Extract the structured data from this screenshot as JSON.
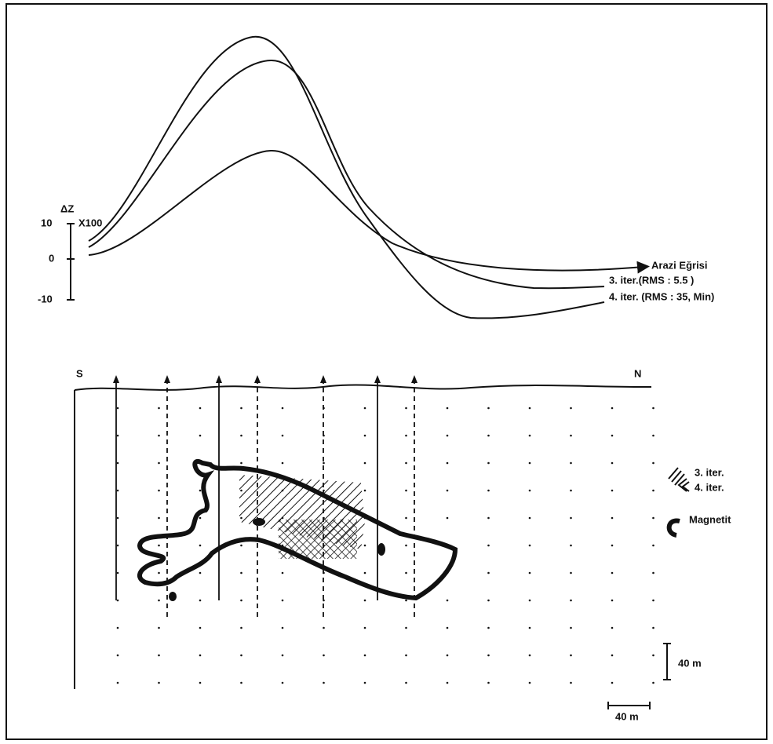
{
  "header": {
    "delta_z": "ΔZ",
    "multiplier": "X100"
  },
  "axis": {
    "ticks": [
      "10",
      "0",
      "-10"
    ]
  },
  "curves": [
    {
      "label": "Arazi Eğrisi"
    },
    {
      "label": "3. iter.(RMS : 5.5 )"
    },
    {
      "label": "4. iter. (RMS : 35, Min)"
    }
  ],
  "section": {
    "south": "S",
    "north": "N"
  },
  "legend": [
    {
      "label": "3. iter."
    },
    {
      "label": "4. iter."
    },
    {
      "label": "Magnetit"
    }
  ],
  "scale": {
    "vertical": "40 m",
    "horizontal": "40 m"
  }
}
